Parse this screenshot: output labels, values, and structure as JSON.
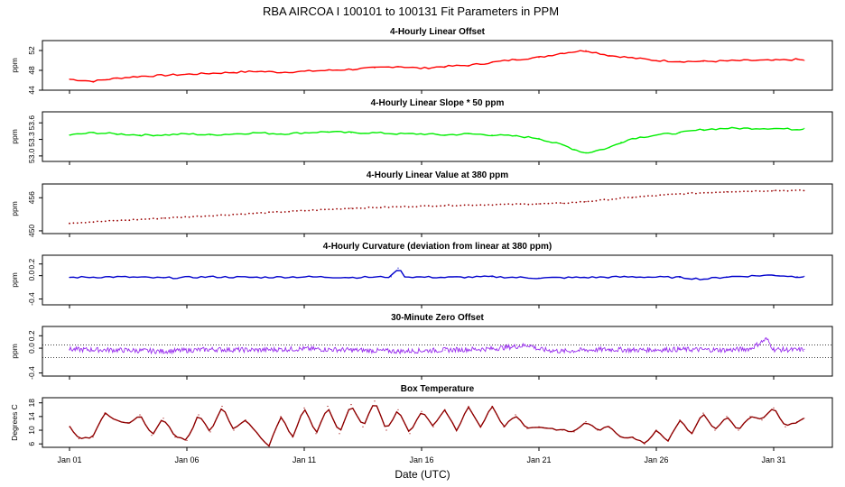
{
  "figure": {
    "title": "RBA   AIRCOA I   100101 to 100131   Fit Parameters in PPM",
    "xlabel": "Date (UTC)"
  },
  "chart_data": [
    {
      "type": "line",
      "title": "4-Hourly Linear Offset",
      "ylabel": "ppm",
      "ylim": [
        44,
        54
      ],
      "yticks": [
        "44",
        "48",
        "52"
      ],
      "xlim": [
        0,
        32.5
      ],
      "color": "#ff0000",
      "style": "line",
      "series": [
        {
          "x": [
            0,
            1,
            2,
            3,
            4,
            5,
            6,
            7,
            8,
            9,
            10,
            11,
            12,
            13,
            14,
            15,
            16,
            17,
            18,
            19,
            20,
            21,
            22,
            23,
            24,
            25,
            26,
            27,
            28,
            29,
            30,
            31,
            31.3
          ],
          "values": [
            46.2,
            45.8,
            46.4,
            46.8,
            47.0,
            47.2,
            47.4,
            47.6,
            47.8,
            47.6,
            47.8,
            48.0,
            48.2,
            48.5,
            48.8,
            48.4,
            48.8,
            49.0,
            49.6,
            50.2,
            50.6,
            51.5,
            52.0,
            51.0,
            50.5,
            50.0,
            49.8,
            49.8,
            49.9,
            50.0,
            50.0,
            50.2,
            50.0
          ]
        }
      ]
    },
    {
      "type": "line",
      "title": "4-Hourly Linear Slope * 50 ppm",
      "ylabel": "ppm",
      "ylim": [
        52.9,
        53.8
      ],
      "yticks": [
        "53.0",
        "53.3",
        "53.6"
      ],
      "xlim": [
        0,
        32.5
      ],
      "color": "#00ee00",
      "style": "line",
      "series": [
        {
          "x": [
            0,
            1,
            2,
            3,
            4,
            5,
            6,
            7,
            8,
            9,
            10,
            11,
            12,
            13,
            14,
            15,
            16,
            17,
            18,
            19,
            20,
            20.5,
            21,
            21.5,
            22,
            22.5,
            23,
            23.5,
            24,
            25,
            26,
            27,
            28,
            29,
            30,
            31,
            31.3
          ],
          "values": [
            53.38,
            53.42,
            53.4,
            53.38,
            53.38,
            53.4,
            53.38,
            53.4,
            53.42,
            53.4,
            53.42,
            53.44,
            53.42,
            53.42,
            53.4,
            53.4,
            53.38,
            53.4,
            53.38,
            53.36,
            53.32,
            53.25,
            53.2,
            53.12,
            53.05,
            53.1,
            53.15,
            53.25,
            53.32,
            53.38,
            53.42,
            53.48,
            53.5,
            53.5,
            53.5,
            53.48,
            53.5
          ]
        }
      ]
    },
    {
      "type": "scatter",
      "title": "4-Hourly Linear Value at 380 ppm",
      "ylabel": "ppm",
      "ylim": [
        449.5,
        458.5
      ],
      "yticks": [
        "450",
        "456"
      ],
      "xlim": [
        0,
        32.5
      ],
      "color": "#990000",
      "style": "dots",
      "series": [
        {
          "x": [
            0,
            4,
            8,
            12,
            16,
            20,
            21,
            22,
            24,
            26,
            28,
            30,
            31.3
          ],
          "values": [
            451.4,
            452.3,
            453.2,
            454.1,
            454.6,
            454.9,
            455.0,
            455.3,
            456.1,
            456.7,
            457.1,
            457.3,
            457.3
          ]
        }
      ]
    },
    {
      "type": "line",
      "title": "4-Hourly Curvature (deviation from linear at 380 ppm)",
      "ylabel": "ppm",
      "ylim": [
        -0.5,
        0.35
      ],
      "yticks": [
        "-0.4",
        "0.0",
        "0.2"
      ],
      "xlim": [
        0,
        32.5
      ],
      "color": "#0000cc",
      "style": "line",
      "series": [
        {
          "x": [
            0,
            2,
            4,
            6,
            8,
            10,
            12,
            13.7,
            14,
            14.3,
            16,
            18,
            20,
            22,
            24,
            26,
            27,
            28,
            30,
            31,
            31.3
          ],
          "values": [
            -0.03,
            -0.02,
            -0.04,
            -0.02,
            -0.03,
            -0.02,
            -0.03,
            -0.02,
            0.13,
            -0.02,
            -0.03,
            -0.02,
            -0.04,
            -0.03,
            -0.02,
            -0.03,
            -0.06,
            -0.02,
            0.01,
            -0.02,
            -0.01
          ]
        }
      ]
    },
    {
      "type": "line",
      "title": "30-Minute Zero Offset",
      "ylabel": "ppm",
      "ylim": [
        -0.45,
        0.35
      ],
      "yticks": [
        "-0.4",
        "0.0",
        "0.2"
      ],
      "xlim": [
        0,
        32.5
      ],
      "color": "#9a30ee",
      "style": "noisy",
      "reference_lines": [
        0.05,
        -0.15
      ],
      "series": [
        {
          "x": [
            0,
            2,
            4,
            6,
            8,
            10,
            12,
            14,
            16,
            18,
            19.6,
            20,
            21,
            22,
            23,
            24,
            26,
            28,
            29,
            29.7,
            30,
            31,
            31.3
          ],
          "values": [
            -0.02,
            -0.03,
            -0.05,
            -0.02,
            -0.03,
            -0.01,
            -0.03,
            -0.05,
            -0.03,
            -0.01,
            0.05,
            -0.02,
            -0.05,
            -0.03,
            -0.02,
            -0.03,
            -0.02,
            -0.03,
            -0.01,
            0.15,
            -0.02,
            -0.03,
            -0.02
          ]
        }
      ]
    },
    {
      "type": "line",
      "title": "Box Temperature",
      "ylabel": "Degrees C",
      "ylim": [
        5,
        19.5
      ],
      "yticks": [
        "6",
        "10",
        "14",
        "18"
      ],
      "xlim": [
        0,
        32.5
      ],
      "color": "#990000",
      "style": "line",
      "series": [
        {
          "x": [
            0,
            0.4,
            1,
            1.5,
            2,
            2.5,
            3,
            3.5,
            4,
            4.5,
            5,
            5.5,
            6,
            6.5,
            7,
            7.5,
            8,
            8.5,
            9,
            9.5,
            10,
            10.5,
            11,
            11.5,
            12,
            12.5,
            13,
            13.5,
            14,
            14.5,
            15,
            15.5,
            16,
            16.5,
            17,
            17.5,
            18,
            18.5,
            19,
            19.5,
            20,
            20.5,
            21,
            21.5,
            22,
            22.5,
            23,
            23.5,
            24,
            24.5,
            25,
            25.5,
            26,
            26.5,
            27,
            27.5,
            28,
            28.5,
            29,
            29.5,
            30,
            30.5,
            31,
            31.3
          ],
          "values": [
            11,
            7.5,
            8,
            15,
            13,
            12,
            14.5,
            8.5,
            13.5,
            8,
            7,
            14.5,
            9.5,
            17,
            10,
            13,
            9,
            5.5,
            14,
            8,
            16.5,
            9,
            17,
            9,
            17.5,
            11,
            18.5,
            10,
            16,
            9,
            15.5,
            11,
            16,
            10,
            17,
            11,
            17,
            11,
            14.5,
            10.5,
            11,
            10.5,
            10,
            9.5,
            12.5,
            10,
            11,
            8,
            8,
            6,
            10,
            7,
            13,
            9,
            15,
            10,
            14,
            10,
            14,
            13,
            16.5,
            11,
            12.5,
            13.5
          ]
        }
      ]
    }
  ],
  "xaxis": {
    "tick_days": [
      0,
      5,
      10,
      15,
      20,
      25,
      30
    ],
    "tick_labels": [
      "Jan 01",
      "Jan 06",
      "Jan 11",
      "Jan 16",
      "Jan 21",
      "Jan 26",
      "Jan 31"
    ]
  }
}
